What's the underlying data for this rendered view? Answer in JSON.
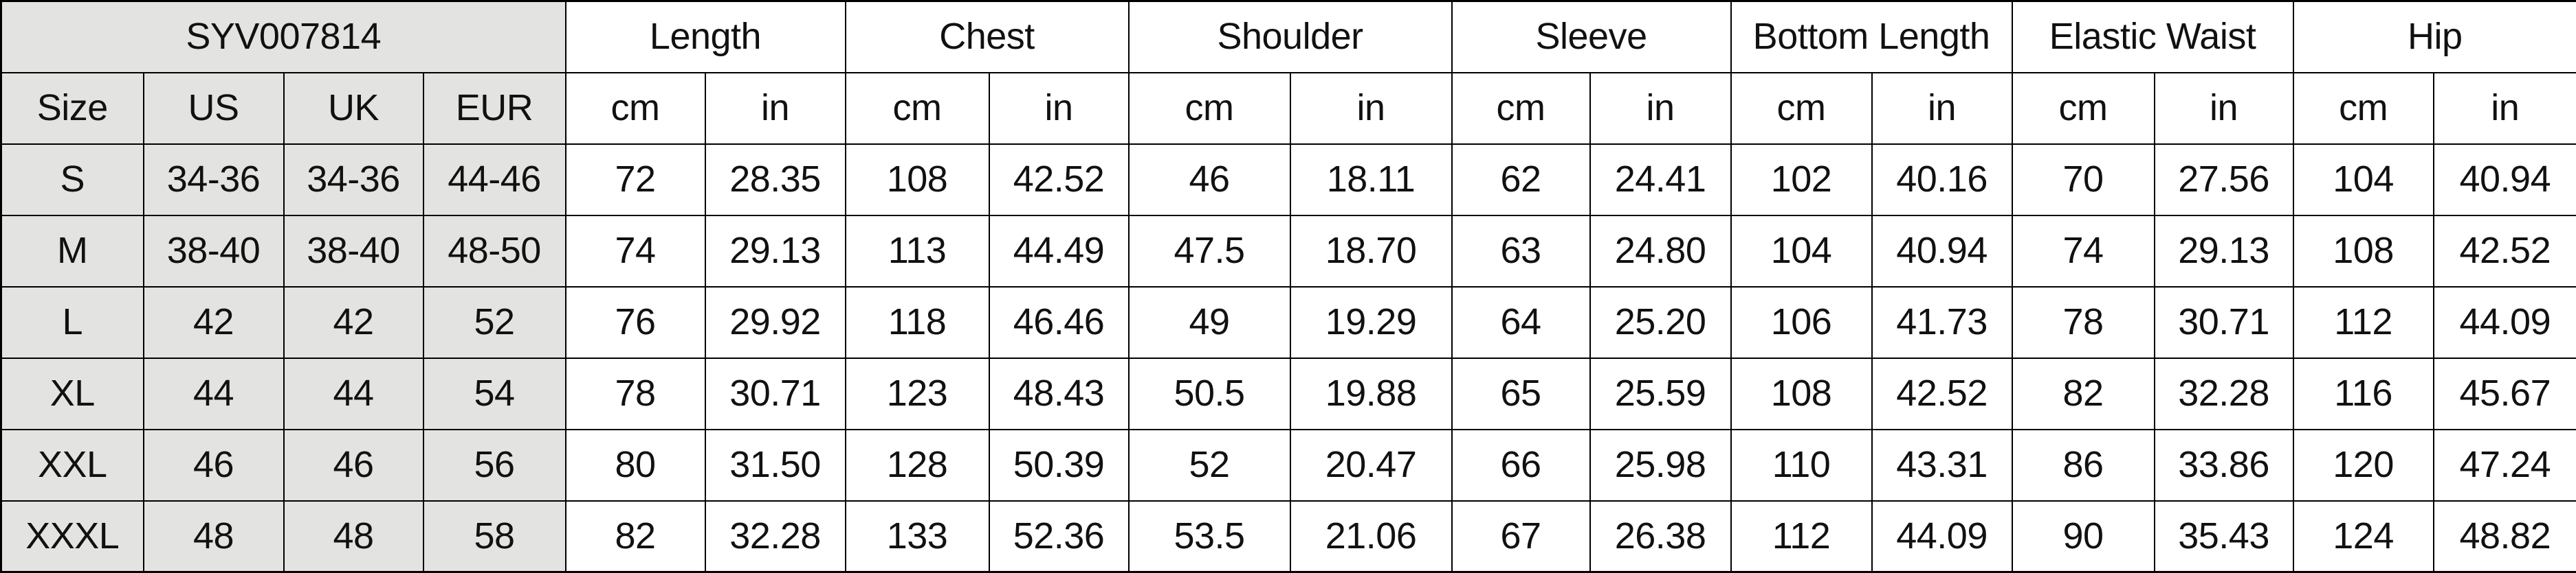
{
  "header": {
    "product_code": "SYV007814",
    "size_columns": [
      "Size",
      "US",
      "UK",
      "EUR"
    ],
    "groups": [
      "Length",
      "Chest",
      "Shoulder",
      "Sleeve",
      "Bottom Length",
      "Elastic Waist",
      "Hip"
    ],
    "units": [
      "cm",
      "in"
    ]
  },
  "chart_data": {
    "type": "table",
    "title": "SYV007814",
    "columns": [
      "Size",
      "US",
      "UK",
      "EUR",
      "Length (cm)",
      "Length (in)",
      "Chest (cm)",
      "Chest (in)",
      "Shoulder (cm)",
      "Shoulder (in)",
      "Sleeve (cm)",
      "Sleeve (in)",
      "Bottom Length (cm)",
      "Bottom Length (in)",
      "Elastic Waist (cm)",
      "Elastic Waist (in)",
      "Hip (cm)",
      "Hip (in)"
    ],
    "rows": [
      [
        "S",
        "34-36",
        "34-36",
        "44-46",
        "72",
        "28.35",
        "108",
        "42.52",
        "46",
        "18.11",
        "62",
        "24.41",
        "102",
        "40.16",
        "70",
        "27.56",
        "104",
        "40.94"
      ],
      [
        "M",
        "38-40",
        "38-40",
        "48-50",
        "74",
        "29.13",
        "113",
        "44.49",
        "47.5",
        "18.70",
        "63",
        "24.80",
        "104",
        "40.94",
        "74",
        "29.13",
        "108",
        "42.52"
      ],
      [
        "L",
        "42",
        "42",
        "52",
        "76",
        "29.92",
        "118",
        "46.46",
        "49",
        "19.29",
        "64",
        "25.20",
        "106",
        "41.73",
        "78",
        "30.71",
        "112",
        "44.09"
      ],
      [
        "XL",
        "44",
        "44",
        "54",
        "78",
        "30.71",
        "123",
        "48.43",
        "50.5",
        "19.88",
        "65",
        "25.59",
        "108",
        "42.52",
        "82",
        "32.28",
        "116",
        "45.67"
      ],
      [
        "XXL",
        "46",
        "46",
        "56",
        "80",
        "31.50",
        "128",
        "50.39",
        "52",
        "20.47",
        "66",
        "25.98",
        "110",
        "43.31",
        "86",
        "33.86",
        "120",
        "47.24"
      ],
      [
        "XXXL",
        "48",
        "48",
        "58",
        "82",
        "32.28",
        "133",
        "52.36",
        "53.5",
        "21.06",
        "67",
        "26.38",
        "112",
        "44.09",
        "90",
        "35.43",
        "124",
        "48.82"
      ]
    ]
  },
  "colors": {
    "size_columns_background": "#e3e3e1",
    "measurement_background": "#ffffff",
    "border": "#000000",
    "text": "#111111"
  }
}
